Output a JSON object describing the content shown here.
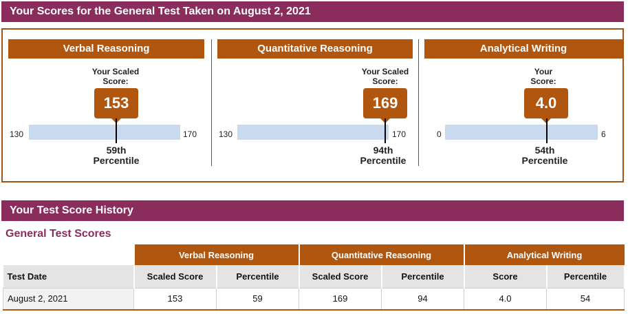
{
  "header": {
    "title": "Your Scores for the General Test Taken on August 2, 2021"
  },
  "scores": [
    {
      "name": "Verbal Reasoning",
      "scaled_label_1": "Your Scaled",
      "scaled_label_2": "Score:",
      "score": "153",
      "min": "130",
      "max": "170",
      "pct_value": "59th",
      "pct_word": "Percentile",
      "level": 0.575
    },
    {
      "name": "Quantitative Reasoning",
      "scaled_label_1": "Your Scaled",
      "scaled_label_2": "Score:",
      "score": "169",
      "min": "130",
      "max": "170",
      "pct_value": "94th",
      "pct_word": "Percentile",
      "level": 0.975
    },
    {
      "name": "Analytical Writing",
      "scaled_label_1": "Your",
      "scaled_label_2": "Score:",
      "score": "4.0",
      "min": "0",
      "max": "6",
      "pct_value": "54th",
      "pct_word": "Percentile",
      "level": 0.667
    }
  ],
  "history": {
    "title": "Your Test Score History",
    "subtitle": "General Test Scores",
    "groups": [
      "Verbal Reasoning",
      "Quantitative Reasoning",
      "Analytical Writing"
    ],
    "columns": [
      "Test Date",
      "Scaled Score",
      "Percentile",
      "Scaled Score",
      "Percentile",
      "Score",
      "Percentile"
    ],
    "rows": [
      [
        "August 2, 2021",
        "153",
        "59",
        "169",
        "94",
        "4.0",
        "54"
      ]
    ]
  },
  "colors": {
    "title_bar": "#8b2d5c",
    "accent": "#b0560e",
    "track": "#c9d9ee"
  }
}
